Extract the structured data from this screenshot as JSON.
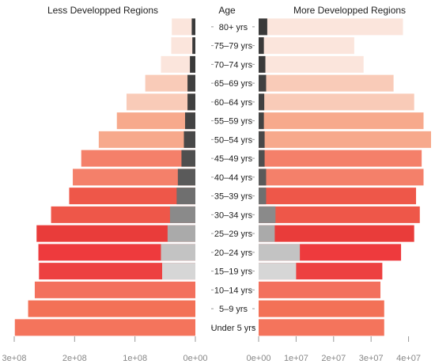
{
  "chart_data": {
    "type": "bar",
    "title_left": "Less Developped Regions",
    "title_center": "Age",
    "title_right": "More Developped Regions",
    "categories": [
      "80+ yrs",
      "75–79 yrs",
      "70–74 yrs",
      "65–69 yrs",
      "60–64 yrs",
      "55–59 yrs",
      "50–54 yrs",
      "45–49 yrs",
      "40–44 yrs",
      "35–39 yrs",
      "30–34 yrs",
      "25–29 yrs",
      "20–24 yrs",
      "15–19 yrs",
      "10–14 yrs",
      "5–9 yrs",
      "Under 5 yrs"
    ],
    "series": [
      {
        "name": "Less Developped Regions",
        "total": [
          39000000,
          40000000,
          57000000,
          83000000,
          114000000,
          130000000,
          160000000,
          189000000,
          203000000,
          209000000,
          239000000,
          263000000,
          260000000,
          259000000,
          266000000,
          277000000,
          299000000
        ],
        "dark": [
          6000000,
          5000000,
          9000000,
          13000000,
          13000000,
          17000000,
          19000000,
          23000000,
          29000000,
          31000000,
          42000000,
          46000000,
          57000000,
          55000000,
          0,
          0,
          0
        ]
      },
      {
        "name": "More Developped Regions",
        "total": [
          38500000,
          25500000,
          28000000,
          36000000,
          41500000,
          44000000,
          46000000,
          43500000,
          44000000,
          42000000,
          43000000,
          41500000,
          38000000,
          33000000,
          32500000,
          33500000,
          33500000
        ],
        "dark": [
          2300000,
          1400000,
          1800000,
          2000000,
          1500000,
          1400000,
          1600000,
          1600000,
          2000000,
          2000000,
          4500000,
          4300000,
          11000000,
          10000000,
          0,
          0,
          0
        ]
      }
    ],
    "colors": [
      "#fbe5dc",
      "#fbe5dc",
      "#fbe5dc",
      "#f9cbb8",
      "#f9cbb8",
      "#f7a98c",
      "#f7a98c",
      "#f4806a",
      "#f4806a",
      "#ee5749",
      "#ee5749",
      "#e93c3a",
      "#ee3a3d",
      "#ed4040",
      "#f3705d",
      "#f37157",
      "#f4745c"
    ],
    "dark_colors": [
      "#3a3a3a",
      "#3a3a3a",
      "#3a3a3a",
      "#404040",
      "#404040",
      "#434343",
      "#484848",
      "#4f4f4f",
      "#5a5a5a",
      "#6f6f6f",
      "#8a8a8a",
      "#aaaaaa",
      "#c3c3c3",
      "#d6d6d6",
      "#ffffff",
      "#ffffff",
      "#ffffff"
    ],
    "left_axis": {
      "ticks": [
        "3e+08",
        "2e+08",
        "1e+08",
        "0e+00"
      ],
      "values": [
        300000000,
        200000000,
        100000000,
        0
      ],
      "xlim": [
        0,
        300000000
      ]
    },
    "right_axis": {
      "ticks": [
        "0e+00",
        "1e+07",
        "2e+07",
        "3e+07",
        "4e+07"
      ],
      "values": [
        0,
        10000000,
        20000000,
        30000000,
        40000000
      ],
      "xlim": [
        0,
        46000000
      ]
    }
  }
}
